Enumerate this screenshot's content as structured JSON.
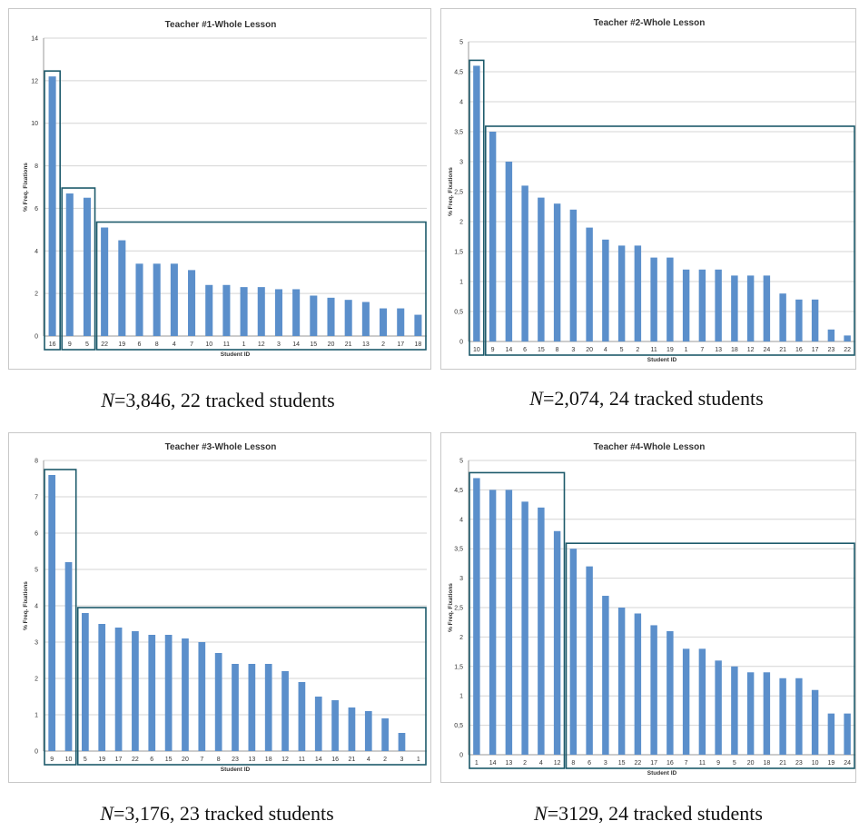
{
  "charts": [
    {
      "id": "t1",
      "caption_var": "N",
      "caption_rest": "=3,846, 22 tracked students",
      "chart_data": {
        "type": "bar",
        "title": "Teacher #1-Whole Lesson",
        "xlabel": "Student ID",
        "ylabel": "% Freq. Fixations",
        "ylim": [
          0,
          14
        ],
        "yticks": [
          0,
          2,
          4,
          6,
          8,
          10,
          12,
          14
        ],
        "ytick_labels": [
          "0",
          "2",
          "4",
          "6",
          "8",
          "10",
          "12",
          "14"
        ],
        "grid": true,
        "bar_color": "#5b8fcb",
        "highlight_color": "#1d5a6b",
        "categories": [
          "16",
          "9",
          "5",
          "22",
          "19",
          "6",
          "8",
          "4",
          "7",
          "10",
          "11",
          "1",
          "12",
          "3",
          "14",
          "15",
          "20",
          "21",
          "13",
          "2",
          "17",
          "18"
        ],
        "values": [
          12.2,
          6.7,
          6.5,
          5.1,
          4.5,
          3.4,
          3.4,
          3.4,
          3.1,
          2.4,
          2.4,
          2.3,
          2.3,
          2.2,
          2.2,
          1.9,
          1.8,
          1.7,
          1.6,
          1.3,
          1.3,
          1.0
        ],
        "groups": [
          [
            0,
            0
          ],
          [
            1,
            2
          ],
          [
            3,
            21
          ]
        ]
      }
    },
    {
      "id": "t2",
      "caption_var": "N",
      "caption_rest": "=2,074, 24 tracked students",
      "chart_data": {
        "type": "bar",
        "title": "Teacher #2-Whole Lesson",
        "xlabel": "Student ID",
        "ylabel": "% Freq. Fixations",
        "ylim": [
          0,
          5
        ],
        "yticks": [
          0,
          0.5,
          1,
          1.5,
          2,
          2.5,
          3,
          3.5,
          4,
          4.5,
          5
        ],
        "ytick_labels": [
          "0",
          "0,5",
          "1",
          "1,5",
          "2",
          "2,5",
          "3",
          "3,5",
          "4",
          "4,5",
          "5"
        ],
        "grid": true,
        "bar_color": "#5b8fcb",
        "highlight_color": "#1d5a6b",
        "categories": [
          "10",
          "9",
          "14",
          "6",
          "15",
          "8",
          "3",
          "20",
          "4",
          "5",
          "2",
          "11",
          "19",
          "1",
          "7",
          "13",
          "18",
          "12",
          "24",
          "21",
          "16",
          "17",
          "23",
          "22"
        ],
        "values": [
          4.6,
          3.5,
          3.0,
          2.6,
          2.4,
          2.3,
          2.2,
          1.9,
          1.7,
          1.6,
          1.6,
          1.4,
          1.4,
          1.2,
          1.2,
          1.2,
          1.1,
          1.1,
          1.1,
          0.8,
          0.7,
          0.7,
          0.2,
          0.1
        ],
        "groups": [
          [
            0,
            0
          ],
          [
            1,
            23
          ]
        ]
      }
    },
    {
      "id": "t3",
      "caption_var": "N",
      "caption_rest": "=3,176, 23 tracked students",
      "chart_data": {
        "type": "bar",
        "title": "Teacher #3-Whole Lesson",
        "xlabel": "Student ID",
        "ylabel": "% Freq. Fixations",
        "ylim": [
          0,
          8
        ],
        "yticks": [
          0,
          1,
          2,
          3,
          4,
          5,
          6,
          7,
          8
        ],
        "ytick_labels": [
          "0",
          "1",
          "2",
          "3",
          "4",
          "5",
          "6",
          "7",
          "8"
        ],
        "grid": true,
        "bar_color": "#5b8fcb",
        "highlight_color": "#1d5a6b",
        "categories": [
          "9",
          "10",
          "5",
          "19",
          "17",
          "22",
          "6",
          "15",
          "20",
          "7",
          "8",
          "23",
          "13",
          "18",
          "12",
          "11",
          "14",
          "16",
          "21",
          "4",
          "2",
          "3",
          "1"
        ],
        "values": [
          7.6,
          5.2,
          3.8,
          3.5,
          3.4,
          3.3,
          3.2,
          3.2,
          3.1,
          3.0,
          2.7,
          2.4,
          2.4,
          2.4,
          2.2,
          1.9,
          1.5,
          1.4,
          1.2,
          1.1,
          0.9,
          0.5,
          0
        ],
        "groups": [
          [
            0,
            1
          ],
          [
            2,
            22
          ]
        ]
      }
    },
    {
      "id": "t4",
      "caption_var": "N",
      "caption_rest": "=3129, 24 tracked students",
      "chart_data": {
        "type": "bar",
        "title": "Teacher #4-Whole Lesson",
        "xlabel": "Student ID",
        "ylabel": "% Freq. Fixations",
        "ylim": [
          0,
          5
        ],
        "yticks": [
          0,
          0.5,
          1,
          1.5,
          2,
          2.5,
          3,
          3.5,
          4,
          4.5,
          5
        ],
        "ytick_labels": [
          "0",
          "0,5",
          "1",
          "1,5",
          "2",
          "2,5",
          "3",
          "3,5",
          "4",
          "4,5",
          "5"
        ],
        "grid": true,
        "bar_color": "#5b8fcb",
        "highlight_color": "#1d5a6b",
        "categories": [
          "1",
          "14",
          "13",
          "2",
          "4",
          "12",
          "8",
          "6",
          "3",
          "15",
          "22",
          "17",
          "16",
          "7",
          "11",
          "9",
          "5",
          "20",
          "18",
          "21",
          "23",
          "10",
          "19",
          "24"
        ],
        "values": [
          4.7,
          4.5,
          4.5,
          4.3,
          4.2,
          3.8,
          3.5,
          3.2,
          2.7,
          2.5,
          2.4,
          2.2,
          2.1,
          1.8,
          1.8,
          1.6,
          1.5,
          1.4,
          1.4,
          1.3,
          1.3,
          1.1,
          0.7,
          0.7
        ],
        "groups": [
          [
            0,
            5
          ],
          [
            6,
            23
          ]
        ]
      }
    }
  ]
}
